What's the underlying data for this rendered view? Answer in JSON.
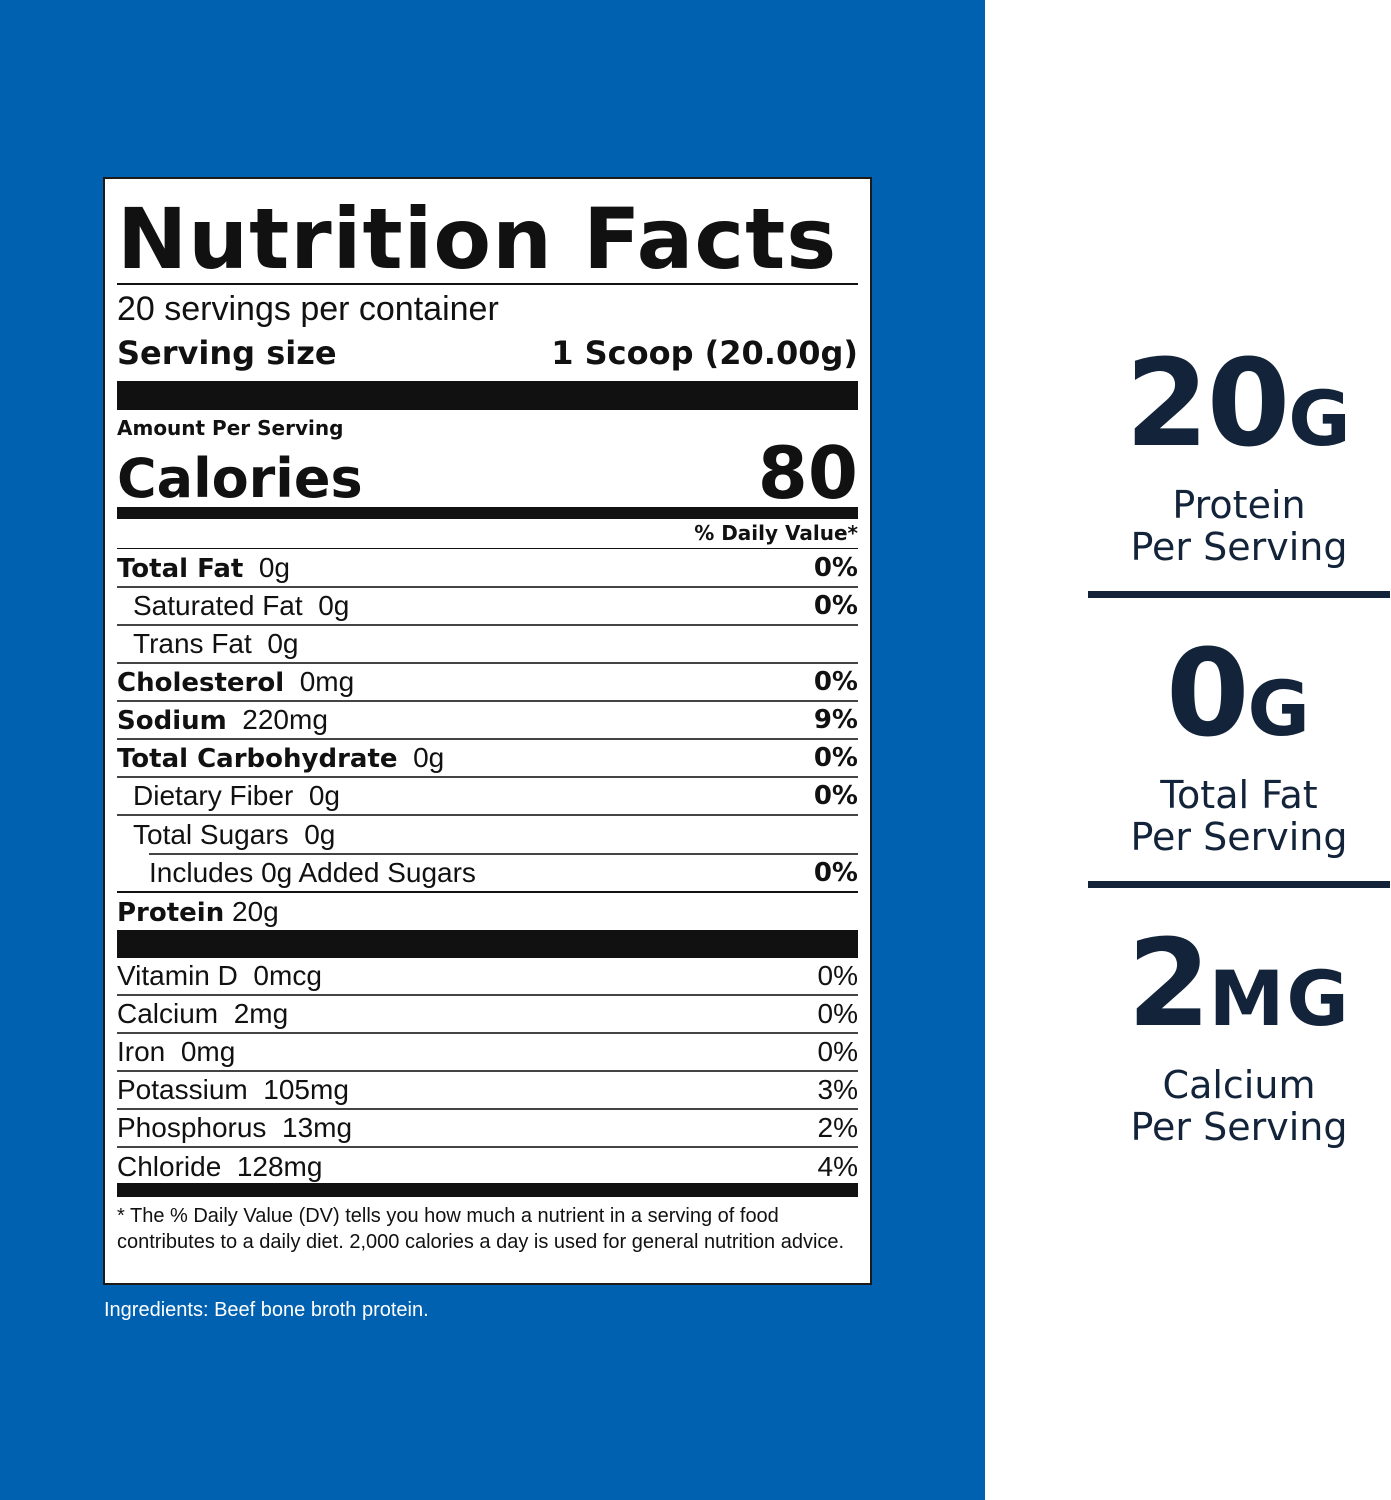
{
  "label": {
    "title": "Nutrition Facts",
    "servings_per_container": "20 servings per container",
    "serving_size_label": "Serving size",
    "serving_size_value": "1 Scoop (20.00g)",
    "amount_per_serving": "Amount Per Serving",
    "calories_label": "Calories",
    "calories_value": "80",
    "daily_value_header": "% Daily Value*",
    "nutrients": [
      {
        "name": "Total Fat",
        "amount": "0g",
        "dv": "0%"
      },
      {
        "name": "Saturated Fat",
        "amount": "0g",
        "dv": "0%"
      },
      {
        "name": "Trans Fat",
        "amount": "0g",
        "dv": ""
      },
      {
        "name": "Cholesterol",
        "amount": "0mg",
        "dv": "0%"
      },
      {
        "name": "Sodium",
        "amount": "220mg",
        "dv": "9%"
      },
      {
        "name": "Total Carbohydrate",
        "amount": "0g",
        "dv": "0%"
      },
      {
        "name": "Dietary Fiber",
        "amount": "0g",
        "dv": "0%"
      },
      {
        "name": "Total Sugars",
        "amount": "0g",
        "dv": ""
      },
      {
        "name": "Includes 0g Added Sugars",
        "amount": "",
        "dv": "0%"
      },
      {
        "name": "Protein",
        "amount": "20g",
        "dv": ""
      }
    ],
    "vitamins": [
      {
        "name": "Vitamin D",
        "amount": "0mcg",
        "dv": "0%"
      },
      {
        "name": "Calcium",
        "amount": "2mg",
        "dv": "0%"
      },
      {
        "name": "Iron",
        "amount": "0mg",
        "dv": "0%"
      },
      {
        "name": "Potassium",
        "amount": "105mg",
        "dv": "3%"
      },
      {
        "name": "Phosphorus",
        "amount": "13mg",
        "dv": "2%"
      },
      {
        "name": "Chloride",
        "amount": "128mg",
        "dv": "4%"
      }
    ],
    "footnote": "* The % Daily Value (DV) tells you how much a nutrient in a serving of food contributes to a daily diet. 2,000 calories a day is used for general nutrition advice."
  },
  "ingredients": "Ingredients: Beef bone broth protein.",
  "highlights": [
    {
      "value": "20",
      "unit": "G",
      "line1": "Protein",
      "line2": "Per Serving"
    },
    {
      "value": "0",
      "unit": "G",
      "line1": "Total Fat",
      "line2": "Per Serving"
    },
    {
      "value": "2",
      "unit": "MG",
      "line1": "Calcium",
      "line2": "Per Serving"
    }
  ],
  "colors": {
    "panel_blue": "#0061b0",
    "highlight_navy": "#13243a",
    "label_black": "#111111"
  }
}
